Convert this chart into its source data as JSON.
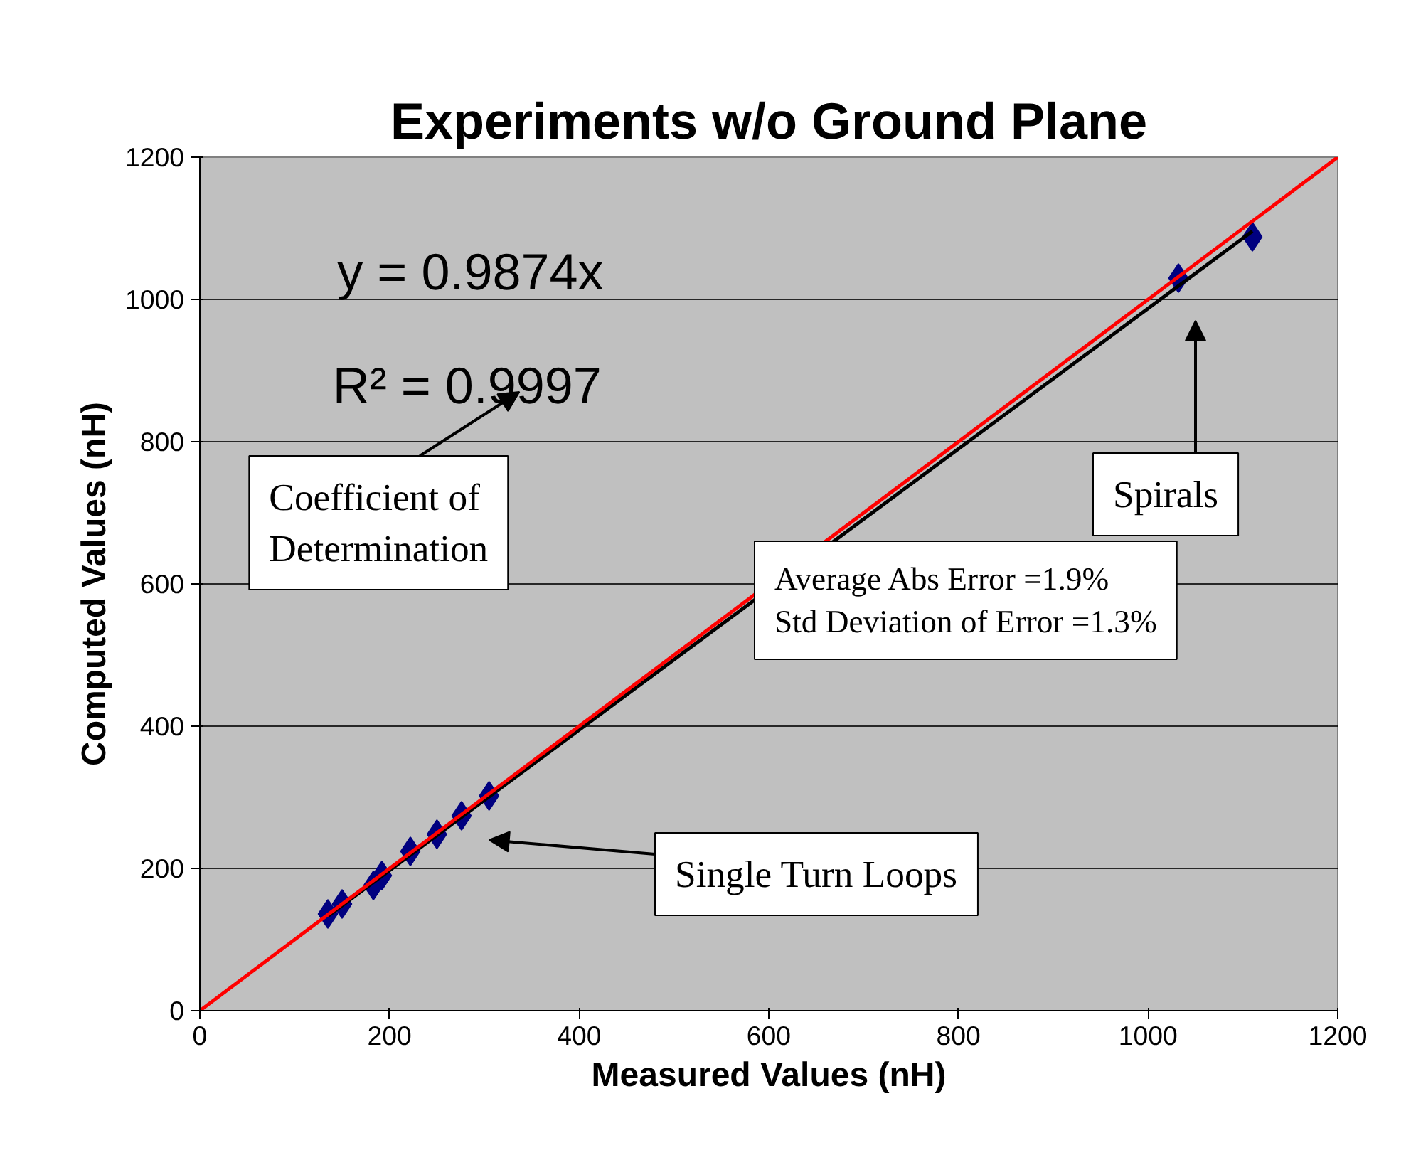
{
  "chart_data": {
    "type": "scatter",
    "title": "Experiments w/o Ground Plane",
    "xlabel": "Measured Values (nH)",
    "ylabel": "Computed Values (nH)",
    "xlim": [
      0,
      1200
    ],
    "ylim": [
      0,
      1200
    ],
    "xticks": [
      0,
      200,
      400,
      600,
      800,
      1000,
      1200
    ],
    "yticks": [
      0,
      200,
      400,
      600,
      800,
      1000,
      1200
    ],
    "grid": "y",
    "series": [
      {
        "marker": "diamond",
        "color": "#000080",
        "x": [
          135,
          150,
          183,
          192,
          222,
          250,
          276,
          305,
          1032,
          1110
        ],
        "values": [
          136,
          150,
          176,
          190,
          224,
          248,
          274,
          302,
          1030,
          1088
        ]
      },
      {
        "type": "line",
        "color": "#000000",
        "x": [
          135,
          1110
        ],
        "values": [
          133,
          1096
        ]
      },
      {
        "type": "line",
        "color": "#ff0000",
        "x": [
          0,
          1200
        ],
        "values": [
          0,
          1200
        ]
      }
    ],
    "annotations": [
      "y = 0.9874x",
      "R² = 0.9997",
      "Coefficient of\nDetermination",
      "Spirals",
      "Average Abs Error =1.9%\nStd Deviation of Error =1.3%",
      "Single Turn Loops"
    ]
  }
}
